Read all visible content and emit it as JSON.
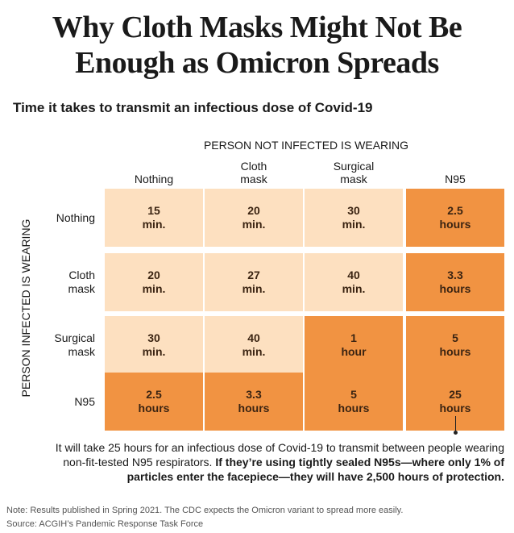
{
  "title": {
    "line1": "Why Cloth Masks Might Not Be",
    "line2": "Enough as Omicron Spreads"
  },
  "subtitle": "Time it takes to transmit an infectious dose of Covid-19",
  "colors": {
    "light": "#fde0c0",
    "dark": "#f19342",
    "text": "#3b2412"
  },
  "chart_data": {
    "type": "heatmap",
    "title": "Time it takes to transmit an infectious dose of Covid-19",
    "xlabel": "PERSON NOT INFECTED IS WEARING",
    "ylabel": "PERSON INFECTED IS WEARING",
    "columns": [
      {
        "line1": "",
        "line2": "Nothing"
      },
      {
        "line1": "Cloth",
        "line2": "mask"
      },
      {
        "line1": "Surgical",
        "line2": "mask"
      },
      {
        "line1": "",
        "line2": "N95"
      }
    ],
    "rows": [
      {
        "line1": "Nothing",
        "line2": ""
      },
      {
        "line1": "Cloth",
        "line2": "mask"
      },
      {
        "line1": "Surgical",
        "line2": "mask"
      },
      {
        "line1": "N95",
        "line2": ""
      }
    ],
    "cells": [
      [
        {
          "value": "15",
          "unit": "min.",
          "level": "low"
        },
        {
          "value": "20",
          "unit": "min.",
          "level": "low"
        },
        {
          "value": "30",
          "unit": "min.",
          "level": "low"
        },
        {
          "value": "2.5",
          "unit": "hours",
          "level": "high"
        }
      ],
      [
        {
          "value": "20",
          "unit": "min.",
          "level": "low"
        },
        {
          "value": "27",
          "unit": "min.",
          "level": "low"
        },
        {
          "value": "40",
          "unit": "min.",
          "level": "low"
        },
        {
          "value": "3.3",
          "unit": "hours",
          "level": "high"
        }
      ],
      [
        {
          "value": "30",
          "unit": "min.",
          "level": "low"
        },
        {
          "value": "40",
          "unit": "min.",
          "level": "low"
        },
        {
          "value": "1",
          "unit": "hour",
          "level": "high"
        },
        {
          "value": "5",
          "unit": "hours",
          "level": "high"
        }
      ],
      [
        {
          "value": "2.5",
          "unit": "hours",
          "level": "high"
        },
        {
          "value": "3.3",
          "unit": "hours",
          "level": "high"
        },
        {
          "value": "5",
          "unit": "hours",
          "level": "high"
        },
        {
          "value": "25",
          "unit": "hours",
          "level": "high"
        }
      ]
    ]
  },
  "callout": {
    "line1": "It will take 25 hours for an infectious dose of Covid-19 to transmit between people wearing",
    "line2_regular": "non-fit-tested N95 respirators. ",
    "line2_bold": "If they’re using tightly sealed N95s—where only 1% of",
    "line3_bold": "particles enter the facepiece—they will have 2,500 hours of protection."
  },
  "footer": {
    "note": "Note: Results published in Spring 2021. The CDC expects the Omicron variant to spread more easily.",
    "source": "Source: ACGIH’s Pandemic Response Task Force"
  }
}
